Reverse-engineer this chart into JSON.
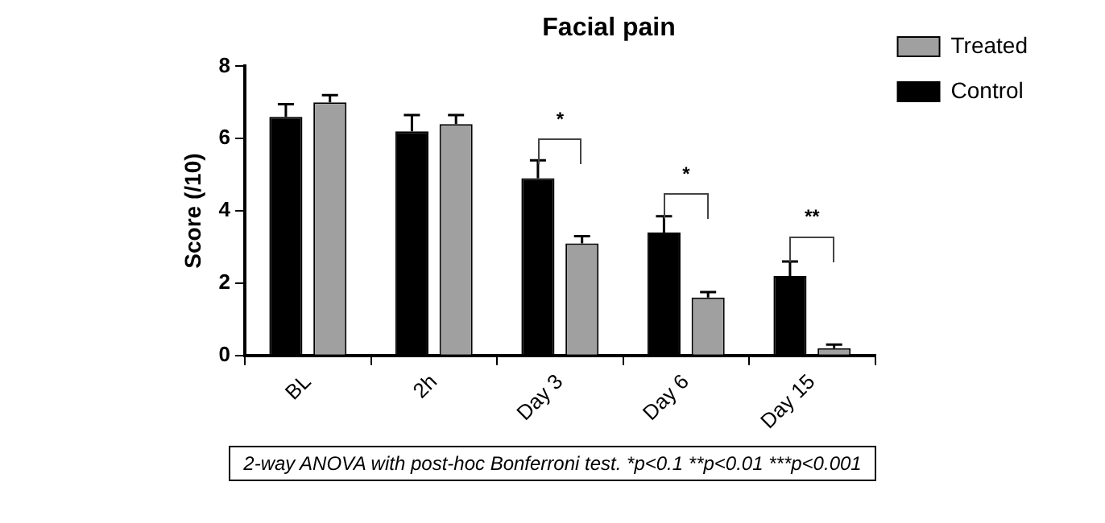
{
  "chart_data": {
    "type": "bar",
    "title": "Facial pain",
    "ylabel": "Score (/10)",
    "categories": [
      "BL",
      "2h",
      "Day 3",
      "Day 6",
      "Day 15"
    ],
    "series": [
      {
        "name": "Control",
        "color": "#000000",
        "values": [
          6.6,
          6.2,
          4.9,
          3.4,
          2.2
        ],
        "errors": [
          [
            6.6,
            6.95
          ],
          [
            6.2,
            6.65
          ],
          [
            4.9,
            5.4
          ],
          [
            3.4,
            3.85
          ],
          [
            2.2,
            2.6
          ]
        ]
      },
      {
        "name": "Treated",
        "color": "#a0a0a0",
        "values": [
          7.0,
          6.4,
          3.1,
          1.6,
          0.2
        ],
        "errors": [
          [
            7.0,
            7.2
          ],
          [
            6.4,
            6.65
          ],
          [
            3.1,
            3.3
          ],
          [
            1.6,
            1.75
          ],
          [
            0.2,
            0.3
          ]
        ]
      }
    ],
    "ylim": [
      0,
      8
    ],
    "yticks": [
      0,
      2,
      4,
      6,
      8
    ],
    "grid": false,
    "legend": "top right",
    "annotations": [
      "*",
      "*",
      "**",
      "2-way ANOVA with post-hoc Bonferroni test. *p<0.1 **p<0.01  ***p<0.001"
    ]
  }
}
